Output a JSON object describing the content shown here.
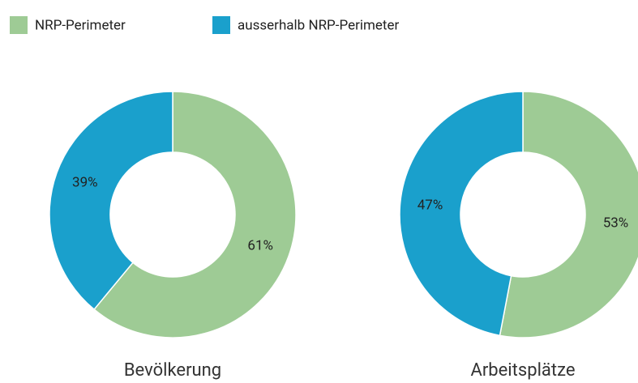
{
  "legend": {
    "items": [
      "NRP-Perimeter",
      "ausserhalb NRP-Perimeter"
    ],
    "colors": [
      "#9ecb95",
      "#1aa0cc"
    ]
  },
  "chart_data": [
    {
      "type": "pie",
      "title": "Bevölkerung",
      "values": [
        61,
        39
      ],
      "value_labels": [
        "61%",
        "39%"
      ]
    },
    {
      "type": "pie",
      "title": "Arbeitsplätze",
      "values": [
        53,
        47
      ],
      "value_labels": [
        "53%",
        "47%"
      ]
    }
  ]
}
